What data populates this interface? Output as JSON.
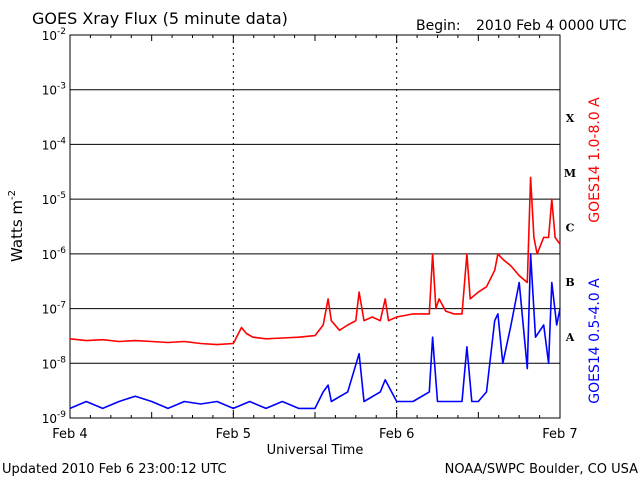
{
  "header": {
    "title": "GOES Xray Flux (5 minute data)",
    "begin_label": "Begin:",
    "begin_value": "2010 Feb 4 0000 UTC"
  },
  "footer": {
    "updated": "Updated 2010 Feb  6 23:00:12 UTC",
    "source": "NOAA/SWPC Boulder, CO USA"
  },
  "chart_data": {
    "type": "line",
    "title": "GOES Xray Flux (5 minute data)",
    "xlabel": "Universal Time",
    "ylabel": "Watts m",
    "ylabel_sup": "-2",
    "x_ticks": [
      "Feb 4",
      "Feb 5",
      "Feb 6",
      "Feb 7"
    ],
    "xlim_days": [
      0,
      3
    ],
    "y_scale": "log",
    "ylim": [
      1e-09,
      0.01
    ],
    "y_ticks": [
      {
        "base": "10",
        "exp": "-2"
      },
      {
        "base": "10",
        "exp": "-3"
      },
      {
        "base": "10",
        "exp": "-4"
      },
      {
        "base": "10",
        "exp": "-5"
      },
      {
        "base": "10",
        "exp": "-6"
      },
      {
        "base": "10",
        "exp": "-7"
      },
      {
        "base": "10",
        "exp": "-8"
      },
      {
        "base": "10",
        "exp": "-9"
      }
    ],
    "flare_classes": [
      {
        "label": "X",
        "value": 0.0001
      },
      {
        "label": "M",
        "value": 1e-05
      },
      {
        "label": "C",
        "value": 1e-06
      },
      {
        "label": "B",
        "value": 1e-07
      },
      {
        "label": "A",
        "value": 1e-08
      }
    ],
    "grid": true,
    "series": [
      {
        "name": "GOES14 1.0-8.0 A",
        "color": "#ff0000",
        "x": [
          0,
          0.1,
          0.2,
          0.3,
          0.4,
          0.5,
          0.6,
          0.7,
          0.8,
          0.9,
          1.0,
          1.05,
          1.08,
          1.12,
          1.2,
          1.3,
          1.4,
          1.5,
          1.55,
          1.58,
          1.6,
          1.65,
          1.7,
          1.75,
          1.77,
          1.8,
          1.85,
          1.9,
          1.93,
          1.95,
          2.0,
          2.1,
          2.2,
          2.22,
          2.24,
          2.26,
          2.3,
          2.35,
          2.4,
          2.43,
          2.45,
          2.5,
          2.55,
          2.6,
          2.62,
          2.65,
          2.7,
          2.75,
          2.8,
          2.82,
          2.84,
          2.86,
          2.9,
          2.93,
          2.95,
          2.97,
          3.0
        ],
        "values": [
          2.8e-08,
          2.6e-08,
          2.7e-08,
          2.5e-08,
          2.6e-08,
          2.5e-08,
          2.4e-08,
          2.5e-08,
          2.3e-08,
          2.2e-08,
          2.3e-08,
          4.5e-08,
          3.5e-08,
          3e-08,
          2.8e-08,
          2.9e-08,
          3e-08,
          3.2e-08,
          5e-08,
          1.5e-07,
          6e-08,
          4e-08,
          5e-08,
          6e-08,
          2e-07,
          6e-08,
          7e-08,
          6e-08,
          1.5e-07,
          6e-08,
          7e-08,
          8e-08,
          8e-08,
          1e-06,
          1e-07,
          1.5e-07,
          9e-08,
          8e-08,
          8e-08,
          1e-06,
          1.5e-07,
          2e-07,
          2.5e-07,
          5e-07,
          1e-06,
          8e-07,
          6e-07,
          4e-07,
          3e-07,
          2.5e-05,
          2e-06,
          1e-06,
          2e-06,
          2e-06,
          1e-05,
          2e-06,
          1.5e-06
        ]
      },
      {
        "name": "GOES14 0.5-4.0 A",
        "color": "#0000ff",
        "x": [
          0,
          0.1,
          0.2,
          0.3,
          0.4,
          0.5,
          0.6,
          0.7,
          0.8,
          0.9,
          1.0,
          1.1,
          1.2,
          1.3,
          1.4,
          1.5,
          1.55,
          1.58,
          1.6,
          1.7,
          1.77,
          1.8,
          1.9,
          1.93,
          2.0,
          2.1,
          2.2,
          2.22,
          2.25,
          2.3,
          2.4,
          2.43,
          2.46,
          2.5,
          2.55,
          2.6,
          2.62,
          2.65,
          2.7,
          2.75,
          2.8,
          2.82,
          2.85,
          2.9,
          2.93,
          2.95,
          2.98,
          3.0
        ],
        "values": [
          1.5e-09,
          2e-09,
          1.5e-09,
          2e-09,
          2.5e-09,
          2e-09,
          1.5e-09,
          2e-09,
          1.8e-09,
          2e-09,
          1.5e-09,
          2e-09,
          1.5e-09,
          2e-09,
          1.5e-09,
          1.5e-09,
          3e-09,
          4e-09,
          2e-09,
          3e-09,
          1.5e-08,
          2e-09,
          3e-09,
          5e-09,
          2e-09,
          2e-09,
          3e-09,
          3e-08,
          2e-09,
          2e-09,
          2e-09,
          2e-08,
          2e-09,
          2e-09,
          3e-09,
          6e-08,
          8e-08,
          1e-08,
          5e-08,
          3e-07,
          8e-09,
          1e-06,
          3e-08,
          5e-08,
          1e-08,
          3e-07,
          5e-08,
          1e-07
        ]
      }
    ]
  }
}
